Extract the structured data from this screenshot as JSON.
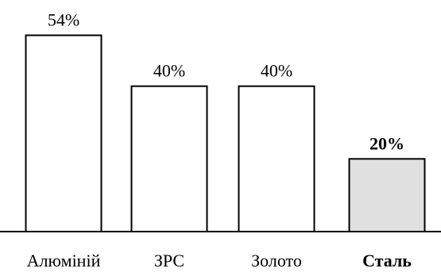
{
  "chart_data": {
    "type": "bar",
    "categories": [
      "Алюміній",
      "ЗРС",
      "Золото",
      "Сталь"
    ],
    "values": [
      54,
      40,
      40,
      20
    ],
    "value_labels": [
      "54%",
      "40%",
      "40%",
      "20%"
    ],
    "highlight_index": 3,
    "ylim": [
      0,
      60
    ],
    "grid": false,
    "legend": false,
    "colors": {
      "default_fill": "#ffffff",
      "highlight_fill": "#e0e0e0",
      "stroke": "#000000"
    }
  }
}
